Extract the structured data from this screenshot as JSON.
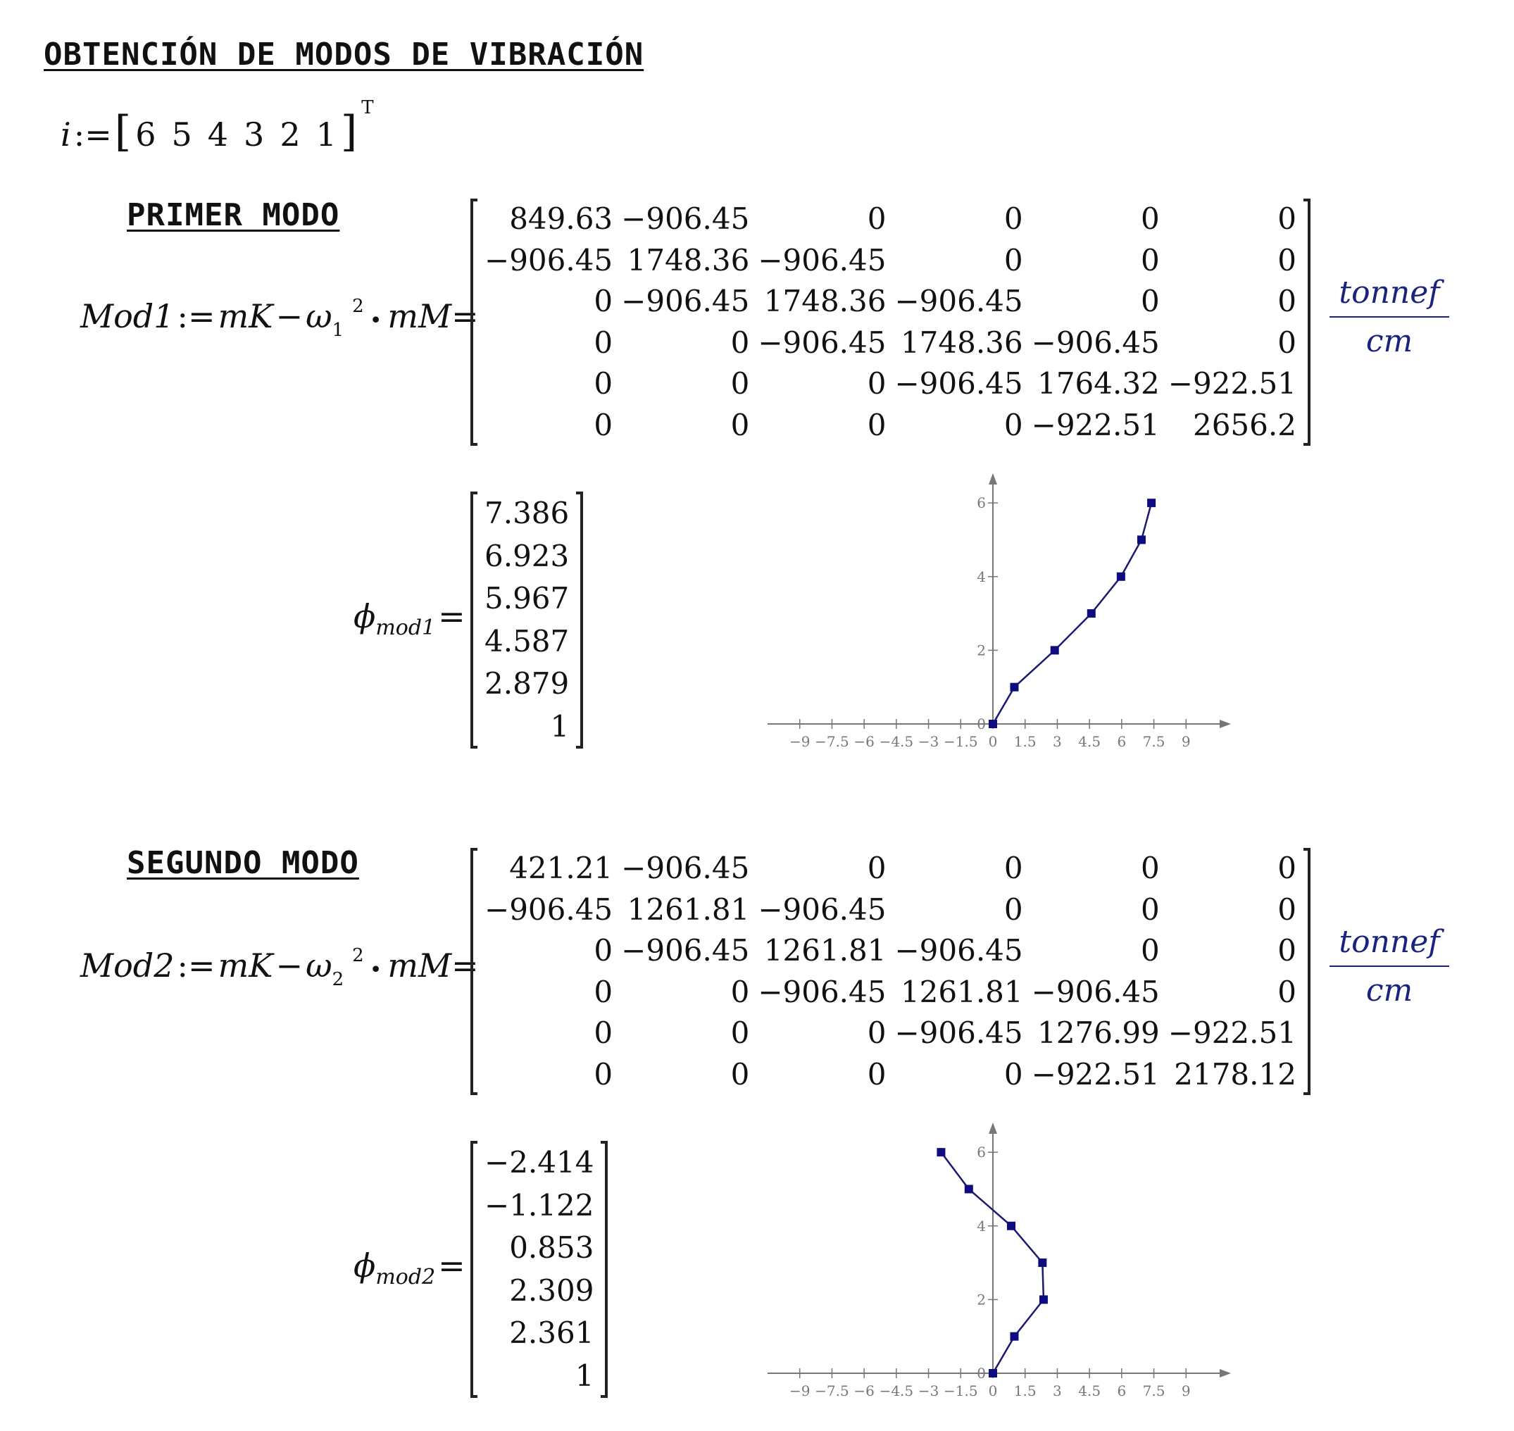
{
  "title": "OBTENCIÓN DE MODOS DE VIBRACIÓN",
  "index_vector": {
    "name": "i",
    "assign": ":=",
    "values": [
      "6",
      "5",
      "4",
      "3",
      "2",
      "1"
    ],
    "transpose": "T"
  },
  "mode1": {
    "heading": "PRIMER MODO",
    "label": "Mod1",
    "omega_sub": "1",
    "matrix": [
      [
        "849.63",
        "−906.45",
        "0",
        "0",
        "0",
        "0"
      ],
      [
        "−906.45",
        "1748.36",
        "−906.45",
        "0",
        "0",
        "0"
      ],
      [
        "0",
        "−906.45",
        "1748.36",
        "−906.45",
        "0",
        "0"
      ],
      [
        "0",
        "0",
        "−906.45",
        "1748.36",
        "−906.45",
        "0"
      ],
      [
        "0",
        "0",
        "0",
        "−906.45",
        "1764.32",
        "−922.51"
      ],
      [
        "0",
        "0",
        "0",
        "0",
        "−922.51",
        "2656.2"
      ]
    ],
    "phi_sub": "mod1",
    "phi": [
      "7.386",
      "6.923",
      "5.967",
      "4.587",
      "2.879",
      "1"
    ]
  },
  "mode2": {
    "heading": "SEGUNDO MODO",
    "label": "Mod2",
    "omega_sub": "2",
    "matrix": [
      [
        "421.21",
        "−906.45",
        "0",
        "0",
        "0",
        "0"
      ],
      [
        "−906.45",
        "1261.81",
        "−906.45",
        "0",
        "0",
        "0"
      ],
      [
        "0",
        "−906.45",
        "1261.81",
        "−906.45",
        "0",
        "0"
      ],
      [
        "0",
        "0",
        "−906.45",
        "1261.81",
        "−906.45",
        "0"
      ],
      [
        "0",
        "0",
        "0",
        "−906.45",
        "1276.99",
        "−922.51"
      ],
      [
        "0",
        "0",
        "0",
        "0",
        "−922.51",
        "2178.12"
      ]
    ],
    "phi_sub": "mod2",
    "phi": [
      "−2.414",
      "−1.122",
      "0.853",
      "2.309",
      "2.361",
      "1"
    ]
  },
  "unit": {
    "numerator": "tonnef",
    "denominator": "cm"
  },
  "expr": {
    "mk": "mK",
    "minus": "−",
    "omega": "ω",
    "sq": "2",
    "dot": "•",
    "mm": "mM",
    "eq": "=",
    "assign": ":=",
    "phi": "ϕ"
  },
  "colors": {
    "line": "#1a1a6e",
    "marker": "#0d0d80",
    "axis": "#777777",
    "unit": "#1a237e"
  },
  "chart_data": [
    {
      "type": "line",
      "x": [
        0,
        1,
        2.879,
        4.587,
        5.967,
        6.923,
        7.386
      ],
      "y": [
        0,
        1,
        2,
        3,
        4,
        5,
        6
      ],
      "xlim": [
        -10.5,
        10.5
      ],
      "ylim": [
        0,
        6.5
      ],
      "x_ticks": [
        -9,
        -7.5,
        -6,
        -4.5,
        -3,
        -1.5,
        0,
        1.5,
        3,
        4.5,
        6,
        7.5,
        9
      ],
      "x_tick_labels": [
        "−9",
        "−7.5",
        "−6",
        "−4.5",
        "−3",
        "−1.5",
        "0",
        "1.5",
        "3",
        "4.5",
        "6",
        "7.5",
        "9"
      ],
      "y_ticks": [
        0,
        2,
        4,
        6
      ],
      "y_tick_labels": [
        "0",
        "2",
        "4",
        "6"
      ],
      "marker": "square",
      "grid": false
    },
    {
      "type": "line",
      "x": [
        0,
        1,
        2.361,
        2.309,
        0.853,
        -1.122,
        -2.414
      ],
      "y": [
        0,
        1,
        2,
        3,
        4,
        5,
        6
      ],
      "xlim": [
        -10.5,
        10.5
      ],
      "ylim": [
        0,
        6.5
      ],
      "x_ticks": [
        -9,
        -7.5,
        -6,
        -4.5,
        -3,
        -1.5,
        0,
        1.5,
        3,
        4.5,
        6,
        7.5,
        9
      ],
      "x_tick_labels": [
        "−9",
        "−7.5",
        "−6",
        "−4.5",
        "−3",
        "−1.5",
        "0",
        "1.5",
        "3",
        "4.5",
        "6",
        "7.5",
        "9"
      ],
      "y_ticks": [
        0,
        2,
        4,
        6
      ],
      "y_tick_labels": [
        "0",
        "2",
        "4",
        "6"
      ],
      "marker": "square",
      "grid": false
    }
  ]
}
